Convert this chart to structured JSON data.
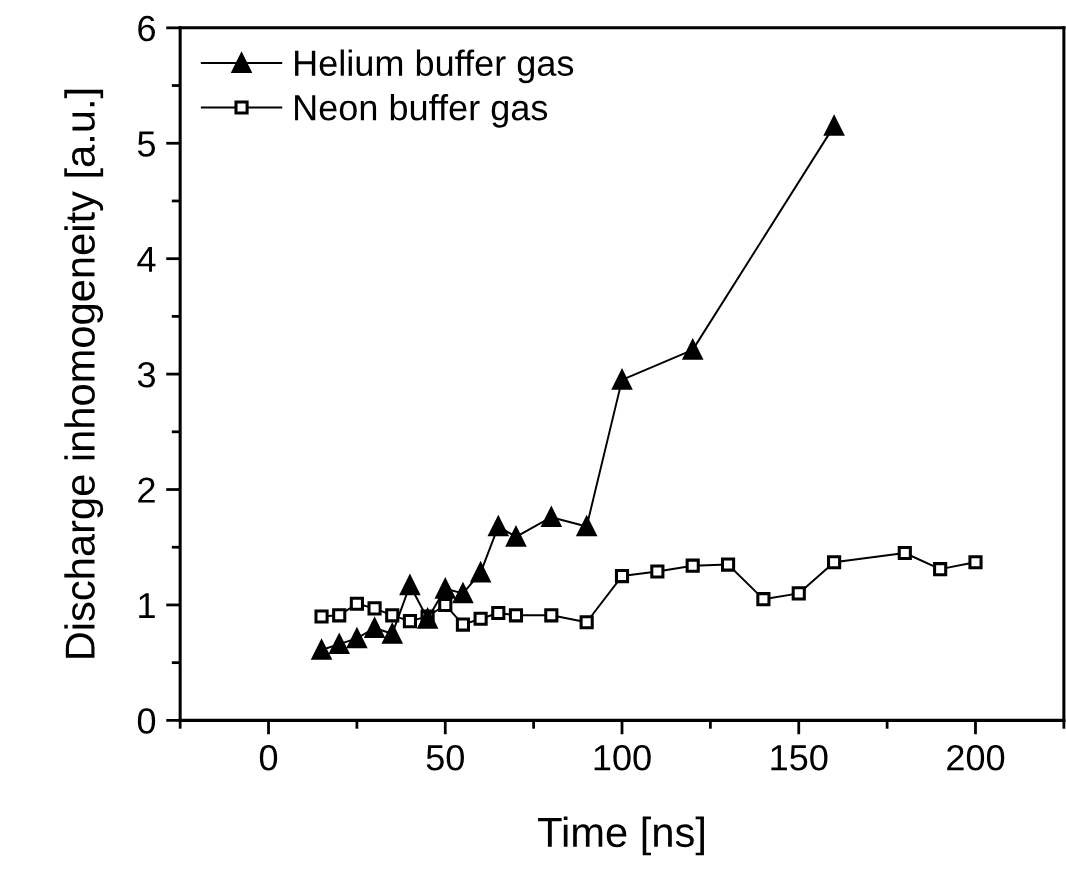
{
  "chart_data": {
    "type": "line",
    "xlabel": "Time [ns]",
    "ylabel": "Discharge inhomogeneity [a.u.]",
    "xlim": [
      -25,
      225
    ],
    "ylim": [
      0,
      6
    ],
    "xticks": [
      0,
      50,
      100,
      150,
      200
    ],
    "yticks": [
      0,
      1,
      2,
      3,
      4,
      5,
      6
    ],
    "grid": false,
    "legend": "top left",
    "series": [
      {
        "name": "Helium buffer gas",
        "color": "#000000",
        "marker": "triangle",
        "x": [
          15,
          20,
          25,
          30,
          35,
          40,
          45,
          50,
          55,
          60,
          65,
          70,
          80,
          90,
          100,
          120,
          160
        ],
        "values": [
          0.61,
          0.66,
          0.71,
          0.8,
          0.75,
          1.17,
          0.88,
          1.14,
          1.1,
          1.28,
          1.68,
          1.59,
          1.76,
          1.68,
          2.95,
          3.21,
          5.15
        ]
      },
      {
        "name": "Neon buffer gas",
        "color": "#000000",
        "marker": "square",
        "x": [
          15,
          20,
          25,
          30,
          35,
          40,
          45,
          50,
          55,
          60,
          65,
          70,
          80,
          90,
          100,
          110,
          120,
          130,
          140,
          150,
          160,
          180,
          190,
          200
        ],
        "values": [
          0.9,
          0.91,
          1.01,
          0.97,
          0.91,
          0.86,
          0.9,
          1.0,
          0.83,
          0.88,
          0.93,
          0.91,
          0.91,
          0.85,
          1.25,
          1.29,
          1.34,
          1.35,
          1.05,
          1.1,
          1.37,
          1.45,
          1.31,
          1.37
        ]
      }
    ]
  }
}
